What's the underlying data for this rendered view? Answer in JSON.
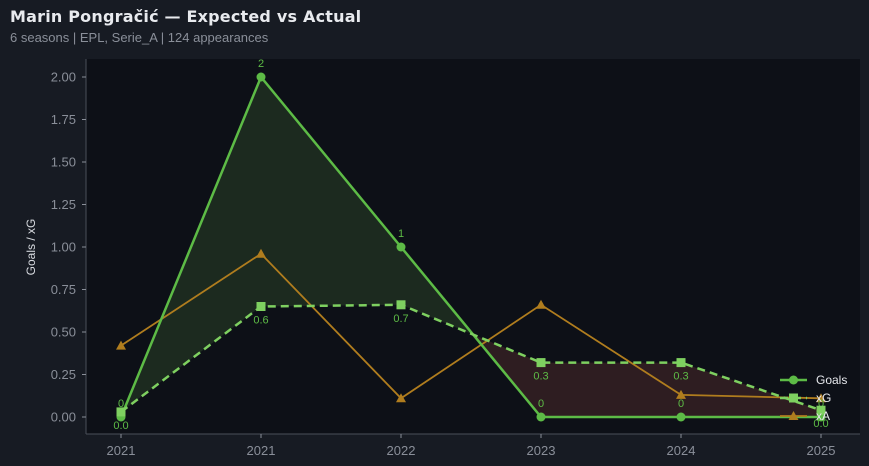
{
  "header": {
    "title": "Marin Pongračić — Expected vs Actual",
    "subtitle": "6 seasons | EPL, Serie_A | 124 appearances"
  },
  "colors": {
    "background": "#171b23",
    "plot_background": "#0d1017",
    "goals": "#5dbb46",
    "xg": "#7ed060",
    "xa": "#b07d1e",
    "overperform_fill": "#1c2a1f",
    "underperform_fill": "#2e1d21"
  },
  "chart_data": {
    "type": "line",
    "title": "Marin Pongračić — Expected vs Actual",
    "subtitle": "6 seasons | EPL, Serie_A | 124 appearances",
    "xlabel": "",
    "ylabel": "Goals / xG",
    "categories": [
      "2021",
      "2021",
      "2022",
      "2023",
      "2024",
      "2025"
    ],
    "ylim": [
      -0.1,
      2.1
    ],
    "yticks": [
      "0.00",
      "0.25",
      "0.50",
      "0.75",
      "1.00",
      "1.25",
      "1.50",
      "1.75",
      "2.00"
    ],
    "grid": false,
    "legend_position": "lower right",
    "series": [
      {
        "name": "Goals",
        "values": [
          0,
          2,
          1,
          0,
          0,
          0
        ],
        "labels": [
          "0",
          "2",
          "1",
          "0",
          "0",
          "0"
        ],
        "style": "solid",
        "marker": "circle"
      },
      {
        "name": "xG",
        "values": [
          0.03,
          0.65,
          0.66,
          0.32,
          0.32,
          0.04
        ],
        "labels": [
          "0.0",
          "0.6",
          "0.7",
          "0.3",
          "0.3",
          "0.0"
        ],
        "style": "dashed",
        "marker": "square"
      },
      {
        "name": "xA",
        "values": [
          0.42,
          0.96,
          0.11,
          0.66,
          0.13,
          0.11
        ],
        "style": "solid",
        "marker": "triangle"
      }
    ]
  },
  "legend": {
    "items": [
      "Goals",
      "xG",
      "xA"
    ]
  }
}
